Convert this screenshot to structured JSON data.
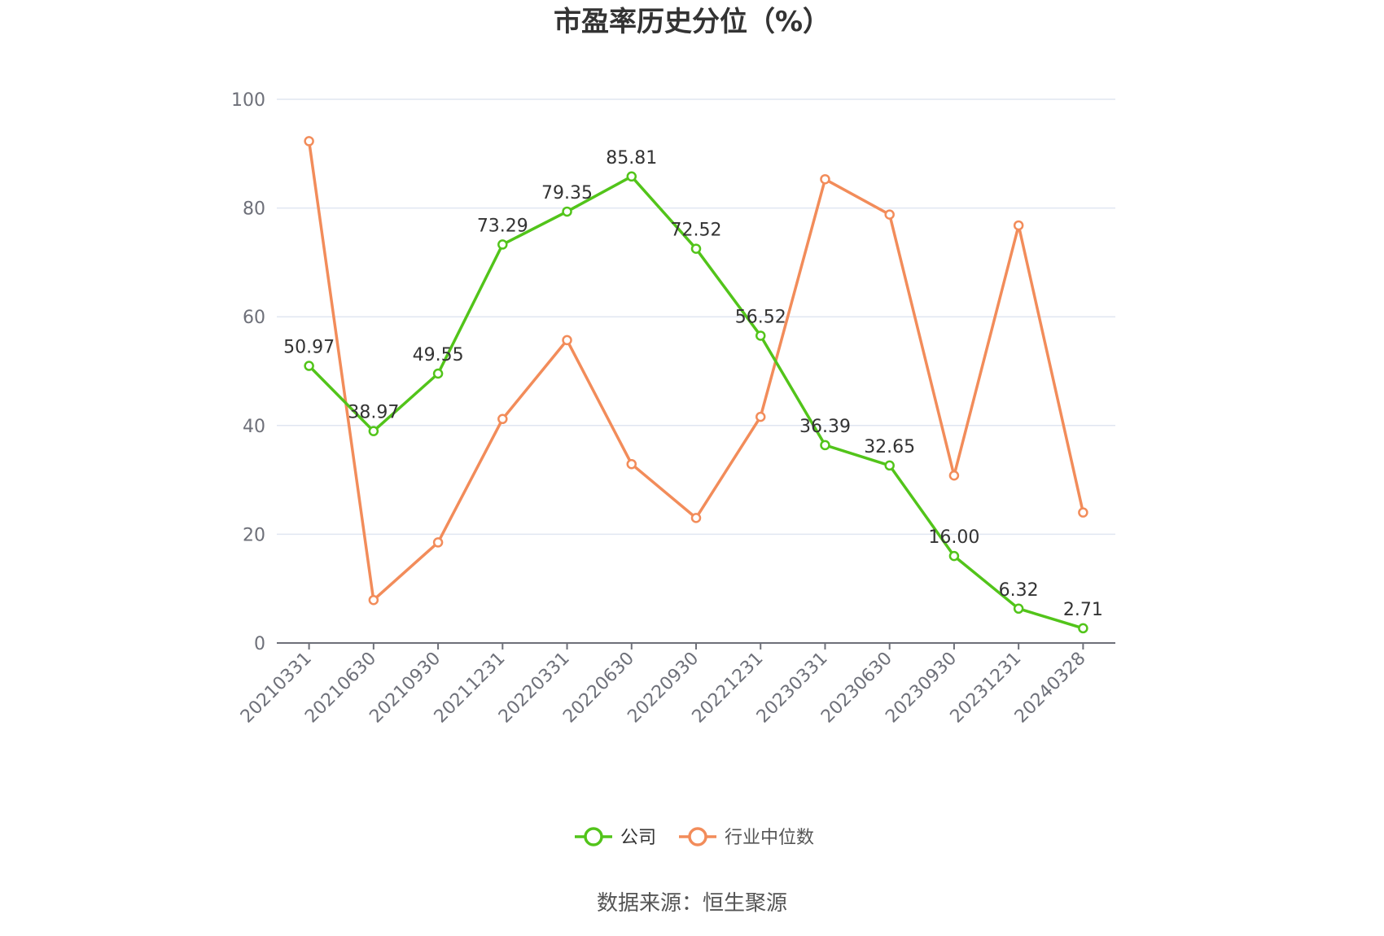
{
  "chart_data": {
    "type": "line",
    "title": "市盈率历史分位（%）",
    "xlabel": "",
    "ylabel": "",
    "ylim": [
      0,
      100
    ],
    "yticks": [
      0,
      20,
      40,
      60,
      80,
      100
    ],
    "grid": true,
    "legend_position": "bottom",
    "categories": [
      "20210331",
      "20210630",
      "20210930",
      "20211231",
      "20220331",
      "20220630",
      "20220930",
      "20221231",
      "20230331",
      "20230630",
      "20230930",
      "20231231",
      "20240328"
    ],
    "series": [
      {
        "name": "公司",
        "color": "#52c41a",
        "values": [
          50.97,
          38.97,
          49.55,
          73.29,
          79.35,
          85.81,
          72.52,
          56.52,
          36.39,
          32.65,
          16.0,
          6.32,
          2.71
        ],
        "labels": [
          "50.97",
          "38.97",
          "49.55",
          "73.29",
          "79.35",
          "85.81",
          "72.52",
          "56.52",
          "36.39",
          "32.65",
          "16.00",
          "6.32",
          "2.71"
        ]
      },
      {
        "name": "行业中位数",
        "color": "#f28c5a",
        "values": [
          92.3,
          7.9,
          18.5,
          41.2,
          55.7,
          32.9,
          23.0,
          41.6,
          85.3,
          78.8,
          30.8,
          76.8,
          24.0
        ]
      }
    ]
  },
  "source_text": "数据来源：恒生聚源"
}
